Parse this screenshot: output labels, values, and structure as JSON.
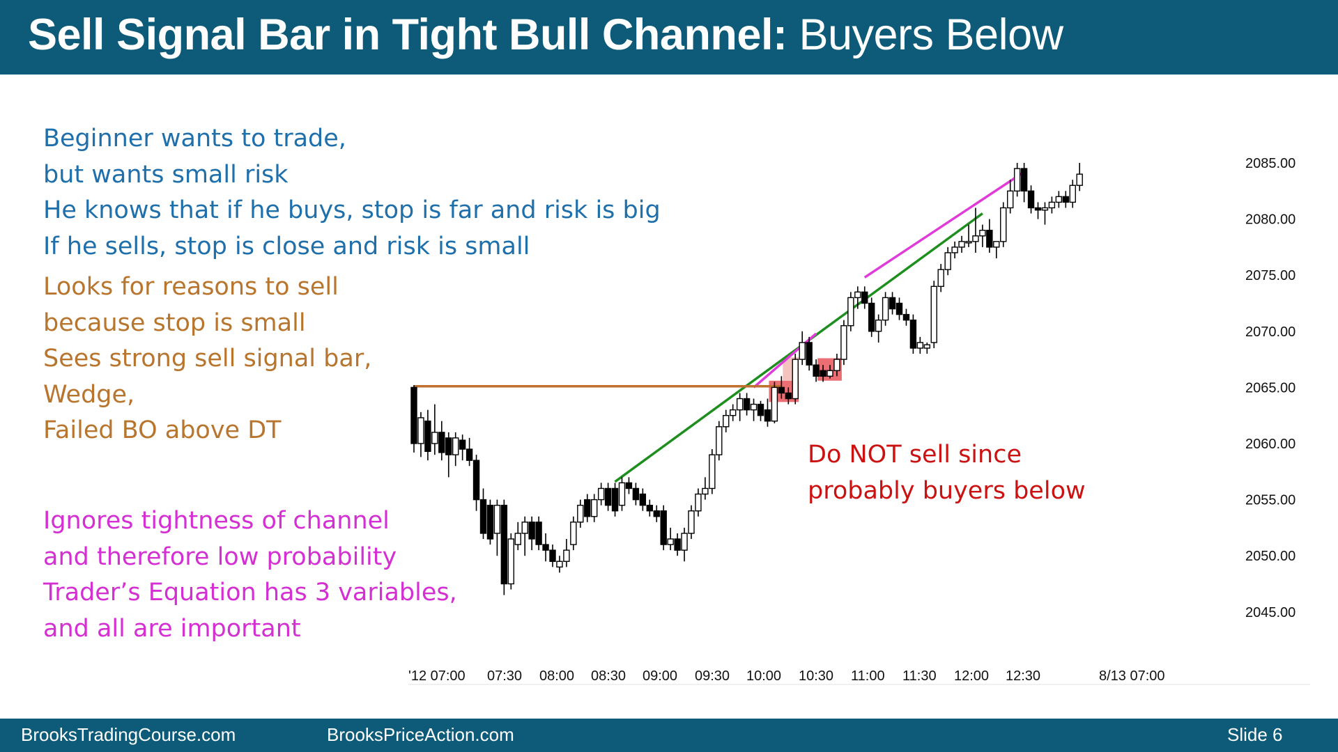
{
  "header": {
    "title_bold": "Sell Signal Bar in Tight Bull Channel:",
    "title_rest": " Buyers Below"
  },
  "notes": {
    "blue": [
      "Beginner wants to trade,",
      "but wants small risk",
      "He knows that if he buys, stop is far and risk is big",
      "If he sells, stop is close and risk is small"
    ],
    "orange": [
      "Looks for reasons to sell",
      "because stop is small",
      "Sees strong sell signal bar,",
      "Wedge,",
      "Failed BO above DT"
    ],
    "magenta": [
      "Ignores tightness of channel",
      "and therefore low probability",
      "Trader’s Equation has 3 variables,",
      "and all are important"
    ],
    "red": [
      "Do NOT sell since",
      "probably buyers below"
    ]
  },
  "footer": {
    "left": "BrooksTradingCourse.com",
    "center": "BrooksPriceAction.com",
    "right": "Slide  6"
  },
  "colors": {
    "header_bg": "#0d5b78",
    "green_trendline": "#1e8f1e",
    "magenta_trendline": "#e03bd8",
    "orange_line": "#c07030",
    "signal_box": "#e8555a"
  },
  "chart_data": {
    "type": "candlestick",
    "ylim": [
      2043.5,
      2087.5
    ],
    "y_ticks": [
      "2085.00",
      "2080.00",
      "2075.00",
      "2070.00",
      "2065.00",
      "2060.00",
      "2055.00",
      "2050.00",
      "2045.00"
    ],
    "x_ticks": [
      "'12 07:00",
      "07:30",
      "08:00",
      "08:30",
      "09:00",
      "09:30",
      "10:00",
      "10:30",
      "11:00",
      "11:30",
      "12:00",
      "12:30",
      "8/13 07:00"
    ],
    "bars": [
      {
        "o": 2065.0,
        "h": 2065.2,
        "l": 2059.2,
        "c": 2060.0
      },
      {
        "o": 2060.0,
        "h": 2062.8,
        "l": 2058.8,
        "c": 2062.3
      },
      {
        "o": 2062.0,
        "h": 2063.0,
        "l": 2058.5,
        "c": 2059.3
      },
      {
        "o": 2060.0,
        "h": 2063.5,
        "l": 2059.0,
        "c": 2061.0
      },
      {
        "o": 2061.0,
        "h": 2062.0,
        "l": 2058.5,
        "c": 2059.2
      },
      {
        "o": 2060.5,
        "h": 2061.0,
        "l": 2057.0,
        "c": 2059.0
      },
      {
        "o": 2059.0,
        "h": 2061.0,
        "l": 2058.0,
        "c": 2060.5
      },
      {
        "o": 2060.3,
        "h": 2060.8,
        "l": 2058.5,
        "c": 2059.5
      },
      {
        "o": 2059.5,
        "h": 2060.5,
        "l": 2058.0,
        "c": 2058.5
      },
      {
        "o": 2058.5,
        "h": 2059.0,
        "l": 2054.0,
        "c": 2055.0
      },
      {
        "o": 2055.0,
        "h": 2056.0,
        "l": 2051.5,
        "c": 2052.0
      },
      {
        "o": 2054.5,
        "h": 2055.0,
        "l": 2051.0,
        "c": 2051.5
      },
      {
        "o": 2052.0,
        "h": 2055.0,
        "l": 2050.0,
        "c": 2054.5
      },
      {
        "o": 2054.5,
        "h": 2055.0,
        "l": 2046.5,
        "c": 2047.5
      },
      {
        "o": 2047.5,
        "h": 2052.0,
        "l": 2047.0,
        "c": 2051.5
      },
      {
        "o": 2051.0,
        "h": 2053.0,
        "l": 2050.5,
        "c": 2052.0
      },
      {
        "o": 2052.0,
        "h": 2053.5,
        "l": 2050.0,
        "c": 2053.0
      },
      {
        "o": 2053.0,
        "h": 2053.5,
        "l": 2050.5,
        "c": 2051.5
      },
      {
        "o": 2053.0,
        "h": 2053.5,
        "l": 2050.5,
        "c": 2051.0
      },
      {
        "o": 2051.0,
        "h": 2052.0,
        "l": 2049.5,
        "c": 2050.5
      },
      {
        "o": 2050.5,
        "h": 2051.0,
        "l": 2049.0,
        "c": 2049.5
      },
      {
        "o": 2049.0,
        "h": 2050.0,
        "l": 2048.5,
        "c": 2049.5
      },
      {
        "o": 2049.5,
        "h": 2051.5,
        "l": 2049.0,
        "c": 2050.5
      },
      {
        "o": 2051.0,
        "h": 2053.5,
        "l": 2050.5,
        "c": 2053.0
      },
      {
        "o": 2053.0,
        "h": 2055.0,
        "l": 2052.5,
        "c": 2054.5
      },
      {
        "o": 2055.0,
        "h": 2055.5,
        "l": 2053.0,
        "c": 2053.5
      },
      {
        "o": 2053.5,
        "h": 2055.5,
        "l": 2053.0,
        "c": 2055.0
      },
      {
        "o": 2055.0,
        "h": 2056.5,
        "l": 2054.5,
        "c": 2056.0
      },
      {
        "o": 2056.0,
        "h": 2056.5,
        "l": 2054.0,
        "c": 2054.5
      },
      {
        "o": 2056.0,
        "h": 2056.5,
        "l": 2053.5,
        "c": 2054.0
      },
      {
        "o": 2054.5,
        "h": 2057.0,
        "l": 2054.0,
        "c": 2056.5
      },
      {
        "o": 2056.5,
        "h": 2057.0,
        "l": 2055.5,
        "c": 2056.0
      },
      {
        "o": 2056.0,
        "h": 2056.5,
        "l": 2054.5,
        "c": 2055.0
      },
      {
        "o": 2055.5,
        "h": 2056.0,
        "l": 2054.0,
        "c": 2054.5
      },
      {
        "o": 2054.5,
        "h": 2055.0,
        "l": 2053.5,
        "c": 2054.0
      },
      {
        "o": 2054.0,
        "h": 2054.5,
        "l": 2053.0,
        "c": 2053.5
      },
      {
        "o": 2054.0,
        "h": 2054.5,
        "l": 2050.5,
        "c": 2051.0
      },
      {
        "o": 2051.0,
        "h": 2052.5,
        "l": 2050.5,
        "c": 2051.5
      },
      {
        "o": 2051.5,
        "h": 2052.0,
        "l": 2050.0,
        "c": 2050.5
      },
      {
        "o": 2050.5,
        "h": 2052.5,
        "l": 2049.5,
        "c": 2052.0
      },
      {
        "o": 2052.0,
        "h": 2054.5,
        "l": 2051.5,
        "c": 2054.0
      },
      {
        "o": 2054.0,
        "h": 2056.0,
        "l": 2053.5,
        "c": 2055.5
      },
      {
        "o": 2055.5,
        "h": 2057.0,
        "l": 2055.0,
        "c": 2056.0
      },
      {
        "o": 2056.0,
        "h": 2059.5,
        "l": 2055.5,
        "c": 2059.0
      },
      {
        "o": 2059.0,
        "h": 2062.0,
        "l": 2058.5,
        "c": 2061.5
      },
      {
        "o": 2061.5,
        "h": 2063.0,
        "l": 2061.0,
        "c": 2062.5
      },
      {
        "o": 2062.5,
        "h": 2063.5,
        "l": 2062.0,
        "c": 2063.0
      },
      {
        "o": 2063.0,
        "h": 2064.5,
        "l": 2062.0,
        "c": 2064.0
      },
      {
        "o": 2064.0,
        "h": 2064.5,
        "l": 2062.5,
        "c": 2063.0
      },
      {
        "o": 2063.0,
        "h": 2064.0,
        "l": 2062.0,
        "c": 2063.5
      },
      {
        "o": 2063.5,
        "h": 2063.8,
        "l": 2062.0,
        "c": 2062.5
      },
      {
        "o": 2063.0,
        "h": 2064.0,
        "l": 2061.5,
        "c": 2062.0
      },
      {
        "o": 2062.0,
        "h": 2065.5,
        "l": 2061.8,
        "c": 2065.0
      },
      {
        "o": 2065.0,
        "h": 2066.0,
        "l": 2064.0,
        "c": 2064.5
      },
      {
        "o": 2064.5,
        "h": 2065.0,
        "l": 2063.5,
        "c": 2064.0
      },
      {
        "o": 2064.0,
        "h": 2068.0,
        "l": 2063.5,
        "c": 2067.5
      },
      {
        "o": 2067.5,
        "h": 2070.0,
        "l": 2067.0,
        "c": 2069.0
      },
      {
        "o": 2069.0,
        "h": 2069.5,
        "l": 2066.5,
        "c": 2067.0
      },
      {
        "o": 2067.0,
        "h": 2067.5,
        "l": 2065.5,
        "c": 2066.0
      },
      {
        "o": 2066.5,
        "h": 2067.0,
        "l": 2065.5,
        "c": 2066.0
      },
      {
        "o": 2066.0,
        "h": 2067.0,
        "l": 2065.8,
        "c": 2066.5
      },
      {
        "o": 2066.5,
        "h": 2068.0,
        "l": 2066.0,
        "c": 2067.5
      },
      {
        "o": 2067.5,
        "h": 2071.0,
        "l": 2067.0,
        "c": 2070.5
      },
      {
        "o": 2070.5,
        "h": 2073.5,
        "l": 2070.0,
        "c": 2073.0
      },
      {
        "o": 2073.0,
        "h": 2074.0,
        "l": 2072.0,
        "c": 2073.5
      },
      {
        "o": 2073.5,
        "h": 2074.0,
        "l": 2072.0,
        "c": 2072.5
      },
      {
        "o": 2072.5,
        "h": 2073.0,
        "l": 2069.5,
        "c": 2070.0
      },
      {
        "o": 2070.0,
        "h": 2071.5,
        "l": 2069.0,
        "c": 2071.0
      },
      {
        "o": 2071.0,
        "h": 2073.5,
        "l": 2070.5,
        "c": 2073.0
      },
      {
        "o": 2073.0,
        "h": 2073.5,
        "l": 2071.5,
        "c": 2072.0
      },
      {
        "o": 2072.5,
        "h": 2073.0,
        "l": 2071.0,
        "c": 2071.5
      },
      {
        "o": 2071.5,
        "h": 2072.0,
        "l": 2070.5,
        "c": 2071.0
      },
      {
        "o": 2071.0,
        "h": 2071.5,
        "l": 2068.0,
        "c": 2068.5
      },
      {
        "o": 2068.5,
        "h": 2069.5,
        "l": 2068.0,
        "c": 2069.0
      },
      {
        "o": 2068.5,
        "h": 2069.0,
        "l": 2068.0,
        "c": 2068.8
      },
      {
        "o": 2069.0,
        "h": 2074.5,
        "l": 2068.5,
        "c": 2074.0
      },
      {
        "o": 2074.0,
        "h": 2076.0,
        "l": 2073.5,
        "c": 2075.5
      },
      {
        "o": 2075.5,
        "h": 2077.5,
        "l": 2075.0,
        "c": 2077.0
      },
      {
        "o": 2077.0,
        "h": 2078.0,
        "l": 2076.5,
        "c": 2077.5
      },
      {
        "o": 2077.5,
        "h": 2078.5,
        "l": 2077.0,
        "c": 2078.0
      },
      {
        "o": 2078.0,
        "h": 2079.5,
        "l": 2077.5,
        "c": 2078.0
      },
      {
        "o": 2078.0,
        "h": 2081.0,
        "l": 2077.0,
        "c": 2078.5
      },
      {
        "o": 2078.5,
        "h": 2079.5,
        "l": 2077.5,
        "c": 2079.0
      },
      {
        "o": 2079.0,
        "h": 2080.0,
        "l": 2077.0,
        "c": 2077.5
      },
      {
        "o": 2077.5,
        "h": 2078.0,
        "l": 2076.5,
        "c": 2078.0
      },
      {
        "o": 2078.0,
        "h": 2081.5,
        "l": 2077.5,
        "c": 2081.0
      },
      {
        "o": 2081.0,
        "h": 2083.5,
        "l": 2080.5,
        "c": 2082.5
      },
      {
        "o": 2082.5,
        "h": 2085.0,
        "l": 2082.0,
        "c": 2084.5
      },
      {
        "o": 2084.5,
        "h": 2085.0,
        "l": 2081.5,
        "c": 2082.5
      },
      {
        "o": 2082.5,
        "h": 2083.0,
        "l": 2080.5,
        "c": 2081.0
      },
      {
        "o": 2081.0,
        "h": 2081.5,
        "l": 2080.0,
        "c": 2080.8
      },
      {
        "o": 2080.8,
        "h": 2081.5,
        "l": 2079.5,
        "c": 2081.0
      },
      {
        "o": 2081.0,
        "h": 2082.0,
        "l": 2080.5,
        "c": 2081.5
      },
      {
        "o": 2081.5,
        "h": 2082.5,
        "l": 2081.0,
        "c": 2082.0
      },
      {
        "o": 2082.0,
        "h": 2082.5,
        "l": 2081.0,
        "c": 2081.5
      },
      {
        "o": 2081.5,
        "h": 2083.5,
        "l": 2081.0,
        "c": 2083.0
      },
      {
        "o": 2083.0,
        "h": 2085.0,
        "l": 2082.5,
        "c": 2084.0
      }
    ],
    "lines": [
      {
        "name": "green-trendline",
        "color": "#1e8f1e",
        "from": {
          "bar": 29,
          "price": 2056.6
        },
        "to": {
          "bar": 82,
          "price": 2080.5
        }
      },
      {
        "name": "magenta-trendline-lower",
        "color": "#e03bd8",
        "from": {
          "bar": 49,
          "price": 2065.0
        },
        "to": {
          "bar": 58,
          "price": 2069.8
        }
      },
      {
        "name": "magenta-trendline-upper",
        "color": "#e03bd8",
        "from": {
          "bar": 65,
          "price": 2074.8
        },
        "to": {
          "bar": 88,
          "price": 2084.2
        }
      },
      {
        "name": "orange-double-top-line",
        "color": "#c07030",
        "from": {
          "bar": 0,
          "price": 2065.1
        },
        "to": {
          "bar": 53,
          "price": 2065.1
        }
      }
    ],
    "boxes": [
      {
        "name": "signal-box-1",
        "from_bar": 51.2,
        "to_bar": 55.5,
        "top": 2065.6,
        "bottom": 2063.7,
        "color": "#e8555a"
      },
      {
        "name": "signal-box-2",
        "from_bar": 58.2,
        "to_bar": 61.7,
        "top": 2067.6,
        "bottom": 2065.6,
        "color": "#e8555a"
      },
      {
        "name": "signal-box-faint",
        "from_bar": 53.2,
        "to_bar": 55.5,
        "top": 2067.7,
        "bottom": 2065.6,
        "color": "#f3b9b4"
      }
    ]
  }
}
